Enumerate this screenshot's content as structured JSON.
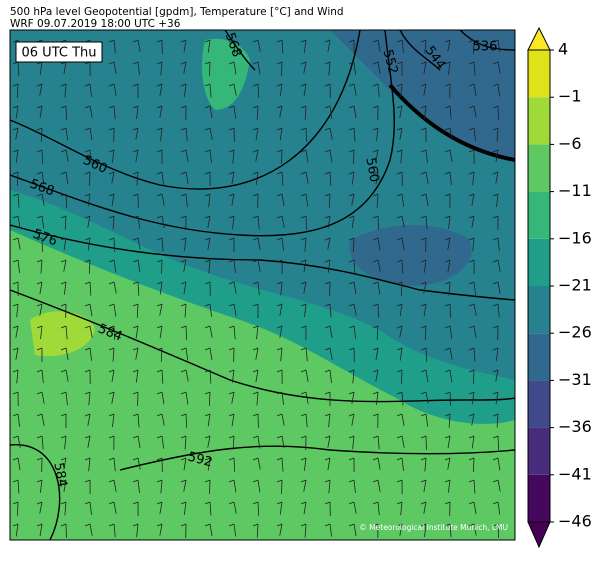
{
  "header": {
    "line1": "500 hPa level Geopotential [gpdm], Temperature [°C] and Wind",
    "line2": "WRF 09.07.2019 18:00 UTC +36"
  },
  "map": {
    "time_label": "06 UTC Thu",
    "contour_labels": [
      "560",
      "568",
      "576",
      "584",
      "592",
      "584",
      "568",
      "552",
      "544",
      "536",
      "560"
    ],
    "credit": "© Meteorological Institute Munich, LMU"
  },
  "colorbar": {
    "lim": [
      -46,
      4
    ],
    "ticks": [
      -46,
      -41,
      -36,
      -31,
      -26,
      -21,
      -16,
      -11,
      -6,
      -1,
      4
    ],
    "tick_labels": [
      "−46",
      "−41",
      "−36",
      "−31",
      "−26",
      "−21",
      "−16",
      "−11",
      "−6",
      "−1",
      "4"
    ],
    "colors": [
      "#46085c",
      "#472d7b",
      "#3e4a89",
      "#31688e",
      "#26828e",
      "#1f9e89",
      "#35b779",
      "#5ec962",
      "#a0da39",
      "#dde318"
    ],
    "extend_colors": [
      "#440154",
      "#fde725"
    ]
  }
}
